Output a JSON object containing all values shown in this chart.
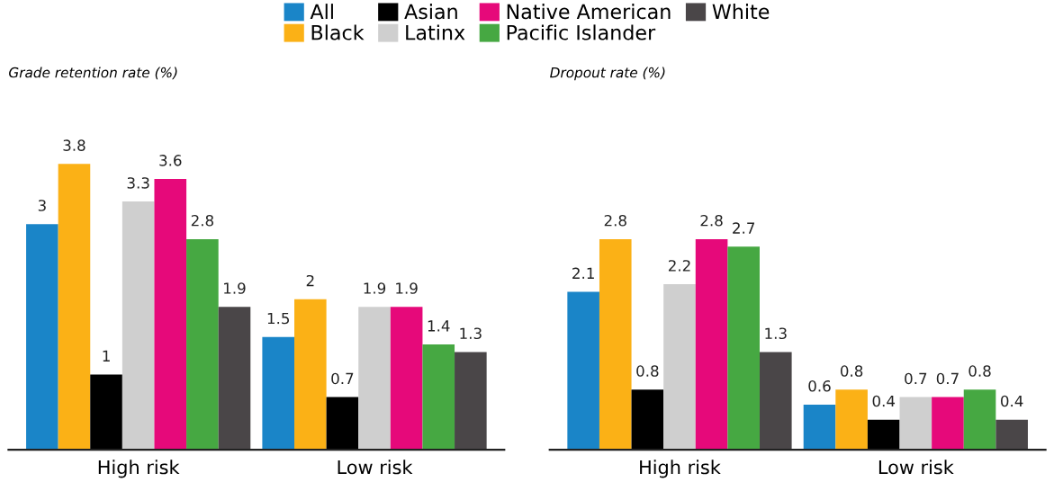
{
  "chart_data": [
    {
      "type": "bar",
      "title": "Grade retention rate (%)",
      "categories": [
        "High risk",
        "Low risk"
      ],
      "tick_labels": "x",
      "data_labels": true,
      "legend": "top",
      "series": [
        {
          "name": "All",
          "color": "#1a85c8",
          "values": [
            3,
            1.5
          ]
        },
        {
          "name": "Black",
          "color": "#fbb116",
          "values": [
            3.8,
            2
          ]
        },
        {
          "name": "Asian",
          "color": "#000000",
          "values": [
            1,
            0.7
          ]
        },
        {
          "name": "Latinx",
          "color": "#cfcfcf",
          "values": [
            3.3,
            1.9
          ]
        },
        {
          "name": "Native American",
          "color": "#e6097a",
          "values": [
            3.6,
            1.9
          ]
        },
        {
          "name": "Pacific Islander",
          "color": "#46a842",
          "values": [
            2.8,
            1.4
          ]
        },
        {
          "name": "White",
          "color": "#4a4648",
          "values": [
            1.9,
            1.3
          ]
        }
      ]
    },
    {
      "type": "bar",
      "title": "Dropout rate (%)",
      "categories": [
        "High risk",
        "Low risk"
      ],
      "tick_labels": "x",
      "data_labels": true,
      "series": [
        {
          "color": "#1a85c8",
          "values": [
            2.1,
            0.6
          ]
        },
        {
          "color": "#fbb116",
          "values": [
            2.8,
            0.8
          ]
        },
        {
          "color": "#000000",
          "values": [
            0.8,
            0.4
          ]
        },
        {
          "color": "#cfcfcf",
          "values": [
            2.2,
            0.7
          ]
        },
        {
          "color": "#e6097a",
          "values": [
            2.8,
            0.7
          ]
        },
        {
          "color": "#46a842",
          "values": [
            2.7,
            0.8
          ]
        },
        {
          "color": "#4a4648",
          "values": [
            1.3,
            0.4
          ]
        }
      ]
    }
  ]
}
